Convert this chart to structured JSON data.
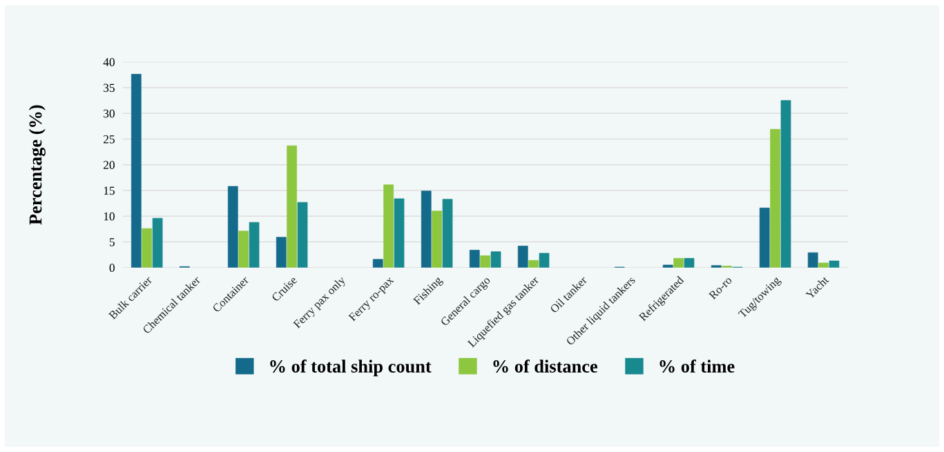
{
  "chart_data": {
    "type": "bar",
    "ylabel": "Percentage (%)",
    "categories": [
      "Bulk carrier",
      "Chemical tanker",
      "Container",
      "Cruise",
      "Ferry pax only",
      "Ferry ro-pax",
      "Fishing",
      "General cargo",
      "Liquefied gas tanker",
      "Oil tanker",
      "Other liquid tankers",
      "Refrigerated",
      "Ro-ro",
      "Tug/towing",
      "Yacht"
    ],
    "series": [
      {
        "name": "% of total ship count",
        "color": "#136a8a",
        "values": [
          37.6,
          0.2,
          15.8,
          5.9,
          null,
          1.6,
          14.9,
          3.4,
          4.2,
          null,
          0.1,
          0.5,
          0.4,
          11.6,
          2.9
        ]
      },
      {
        "name": "% of distance",
        "color": "#8dc63f",
        "values": [
          7.6,
          null,
          7.1,
          23.7,
          null,
          16.1,
          11.0,
          2.3,
          1.4,
          null,
          null,
          1.8,
          0.3,
          26.9,
          0.9
        ]
      },
      {
        "name": "% of time",
        "color": "#17898f",
        "values": [
          9.6,
          null,
          8.8,
          12.7,
          null,
          13.4,
          13.3,
          3.1,
          2.8,
          null,
          null,
          1.8,
          0.1,
          32.5,
          1.3
        ]
      }
    ],
    "ylim": [
      0,
      40
    ],
    "yticks": [
      0,
      5,
      10,
      15,
      20,
      25,
      30,
      35,
      40
    ],
    "grid": "y",
    "legend": "bottom"
  }
}
